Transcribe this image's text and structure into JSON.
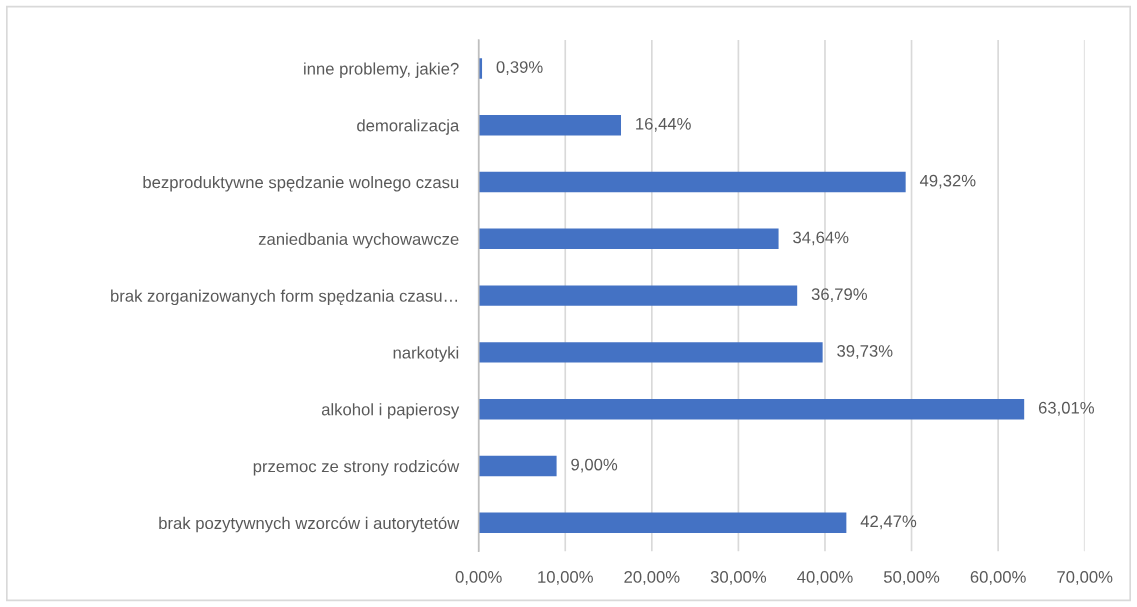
{
  "chart_data": {
    "type": "bar",
    "orientation": "horizontal",
    "categories": [
      "inne problemy, jakie?",
      "demoralizacja",
      "bezproduktywne spędzanie wolnego czasu",
      "zaniedbania wychowawcze",
      "brak zorganizowanych form spędzania czasu…",
      "narkotyki",
      "alkohol i papierosy",
      "przemoc ze strony rodziców",
      "brak pozytywnych wzorców i autorytetów"
    ],
    "values": [
      0.39,
      16.44,
      49.32,
      34.64,
      36.79,
      39.73,
      63.01,
      9.0,
      42.47
    ],
    "color": "#4472c4",
    "value_labels": [
      "0,39%",
      "16,44%",
      "49,32%",
      "34,64%",
      "36,79%",
      "39,73%",
      "63,01%",
      "9,00%",
      "42,47%"
    ],
    "xlim": [
      0,
      70
    ],
    "xticks": [
      {
        "value": 0,
        "label": "0,00%"
      },
      {
        "value": 10,
        "label": "10,00%"
      },
      {
        "value": 20,
        "label": "20,00%"
      },
      {
        "value": 30,
        "label": "30,00%"
      },
      {
        "value": 40,
        "label": "40,00%"
      },
      {
        "value": 50,
        "label": "50,00%"
      },
      {
        "value": 60,
        "label": "60,00%"
      },
      {
        "value": 70,
        "label": "70,00%"
      }
    ],
    "grid": "x"
  }
}
